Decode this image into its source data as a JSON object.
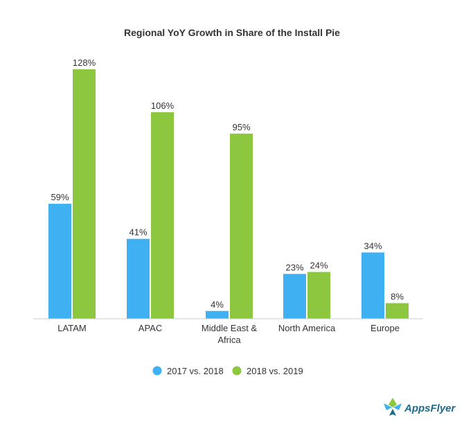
{
  "chart_data": {
    "type": "bar",
    "title": "Regional YoY Growth in Share of the Install Pie",
    "categories": [
      [
        "LATAM"
      ],
      [
        "APAC"
      ],
      [
        "Middle East &",
        "Africa"
      ],
      [
        "North America"
      ],
      [
        "Europe"
      ]
    ],
    "series": [
      {
        "name": "2017 vs. 2018",
        "color": "#3fb1f2",
        "values": [
          59,
          41,
          4,
          23,
          34
        ],
        "labels": [
          "59%",
          "41%",
          "4%",
          "23%",
          "34%"
        ]
      },
      {
        "name": "2018 vs. 2019",
        "color": "#8dc63f",
        "values": [
          128,
          106,
          95,
          24,
          8
        ],
        "labels": [
          "128%",
          "106%",
          "95%",
          "24%",
          "8%"
        ]
      }
    ],
    "ylim": [
      0,
      128
    ],
    "grid": false,
    "legend": "bottom-center"
  },
  "logo": {
    "text": "AppsFlyer",
    "icon": "appsflyer-logo-icon"
  }
}
